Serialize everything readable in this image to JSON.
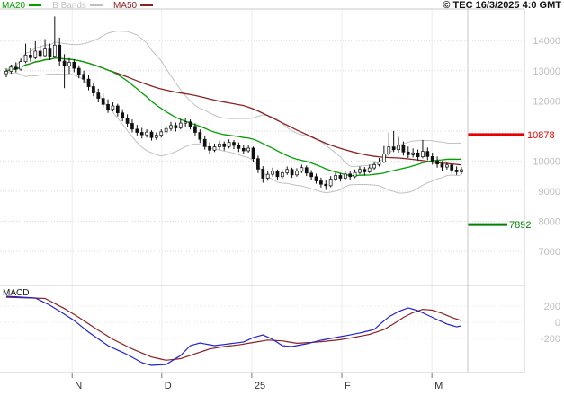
{
  "header": {
    "copyright": "© TEC 16/3/2025 4:0 GMT",
    "legend": [
      {
        "name": "ma20",
        "label": "MA20",
        "color": "#00a000"
      },
      {
        "name": "bbands",
        "label": "B Bands",
        "color": "#c0c0c0"
      },
      {
        "name": "ma50",
        "label": "MA50",
        "color": "#8b2222"
      }
    ]
  },
  "chart_data": {
    "type": "candlestick",
    "title": "",
    "price_axis": {
      "ticks": [
        14000,
        13000,
        12000,
        11000,
        10000,
        9000,
        8000,
        7000
      ],
      "top_value": 15050,
      "bottom_value": 5867
    },
    "x_axis": {
      "labels": [
        {
          "label": "N",
          "index": 13.6
        },
        {
          "label": "D",
          "index": 32.1
        },
        {
          "label": "25",
          "index": 50.7
        },
        {
          "label": "F",
          "index": 69.3
        },
        {
          "label": "M",
          "index": 87.9
        }
      ]
    },
    "levels": [
      {
        "value": 10878,
        "label": "10878",
        "color": "#e80000",
        "side": "outer"
      },
      {
        "value": 7892,
        "label": "7892",
        "color": "#008000",
        "side": "inner"
      }
    ],
    "indicators": {
      "ma20": {
        "period": 20,
        "color": "#00a000"
      },
      "ma50": {
        "period": 50,
        "color": "#8b2222"
      },
      "bbands": {
        "period": 20,
        "mult": 2,
        "color": "#c0c0c0"
      }
    },
    "candles": [
      [
        12900,
        13080,
        12780,
        12980
      ],
      [
        12980,
        13200,
        12900,
        13120
      ],
      [
        13120,
        13280,
        12950,
        13050
      ],
      [
        13050,
        13400,
        13000,
        13300
      ],
      [
        13300,
        13900,
        13250,
        13520
      ],
      [
        13520,
        13750,
        13300,
        13430
      ],
      [
        13430,
        13980,
        13380,
        13650
      ],
      [
        13650,
        13850,
        13400,
        13500
      ],
      [
        13500,
        14050,
        13450,
        13720
      ],
      [
        13720,
        13900,
        13350,
        13480
      ],
      [
        13480,
        14800,
        13420,
        13850
      ],
      [
        13850,
        14100,
        13150,
        13320
      ],
      [
        13320,
        13550,
        12420,
        13150
      ],
      [
        13150,
        13420,
        12900,
        13280
      ],
      [
        13280,
        13380,
        12950,
        13080
      ],
      [
        13080,
        13180,
        12750,
        12880
      ],
      [
        12880,
        13000,
        12600,
        12720
      ],
      [
        12720,
        12850,
        12350,
        12470
      ],
      [
        12470,
        12600,
        12150,
        12260
      ],
      [
        12260,
        12400,
        11950,
        12080
      ],
      [
        12080,
        12250,
        11780,
        11880
      ],
      [
        11880,
        12050,
        11600,
        11720
      ],
      [
        11720,
        11950,
        11650,
        11830
      ],
      [
        11830,
        11900,
        11480,
        11600
      ],
      [
        11600,
        11720,
        11320,
        11430
      ],
      [
        11430,
        11550,
        11120,
        11250
      ],
      [
        11250,
        11380,
        10950,
        11060
      ],
      [
        11060,
        11200,
        10850,
        10950
      ],
      [
        10950,
        11100,
        10750,
        10870
      ],
      [
        10870,
        11050,
        10780,
        10960
      ],
      [
        10960,
        11020,
        10680,
        10780
      ],
      [
        10780,
        10950,
        10700,
        10860
      ],
      [
        10860,
        11050,
        10780,
        10970
      ],
      [
        10970,
        11180,
        10900,
        11080
      ],
      [
        11080,
        11300,
        11000,
        11180
      ],
      [
        11180,
        11280,
        10980,
        11100
      ],
      [
        11100,
        11380,
        11050,
        11260
      ],
      [
        11260,
        11420,
        11120,
        11300
      ],
      [
        11300,
        11380,
        11050,
        11150
      ],
      [
        11150,
        11250,
        10850,
        10950
      ],
      [
        10950,
        11050,
        10600,
        10720
      ],
      [
        10720,
        10850,
        10380,
        10480
      ],
      [
        10480,
        10620,
        10250,
        10360
      ],
      [
        10360,
        10580,
        10300,
        10470
      ],
      [
        10470,
        10680,
        10380,
        10570
      ],
      [
        10570,
        10650,
        10350,
        10480
      ],
      [
        10480,
        10720,
        10420,
        10620
      ],
      [
        10620,
        10700,
        10400,
        10520
      ],
      [
        10520,
        10620,
        10300,
        10420
      ],
      [
        10420,
        10550,
        10250,
        10340
      ],
      [
        10340,
        10520,
        10280,
        10430
      ],
      [
        10430,
        10480,
        9950,
        10080
      ],
      [
        10080,
        10180,
        9600,
        9730
      ],
      [
        9730,
        9830,
        9280,
        9430
      ],
      [
        9430,
        9680,
        9350,
        9560
      ],
      [
        9560,
        9780,
        9480,
        9660
      ],
      [
        9660,
        9720,
        9380,
        9480
      ],
      [
        9480,
        9700,
        9420,
        9610
      ],
      [
        9610,
        9820,
        9540,
        9720
      ],
      [
        9720,
        9780,
        9440,
        9540
      ],
      [
        9540,
        9760,
        9480,
        9660
      ],
      [
        9660,
        9880,
        9600,
        9780
      ],
      [
        9780,
        9850,
        9500,
        9600
      ],
      [
        9600,
        9700,
        9380,
        9480
      ],
      [
        9480,
        9580,
        9250,
        9340
      ],
      [
        9340,
        9450,
        9120,
        9230
      ],
      [
        9230,
        9380,
        9040,
        9180
      ],
      [
        9180,
        9500,
        9130,
        9400
      ],
      [
        9400,
        9620,
        9330,
        9520
      ],
      [
        9520,
        9600,
        9320,
        9430
      ],
      [
        9430,
        9680,
        9380,
        9570
      ],
      [
        9570,
        9650,
        9380,
        9480
      ],
      [
        9480,
        9720,
        9430,
        9620
      ],
      [
        9620,
        9820,
        9560,
        9720
      ],
      [
        9720,
        9800,
        9520,
        9640
      ],
      [
        9640,
        9880,
        9600,
        9770
      ],
      [
        9770,
        9990,
        9710,
        9880
      ],
      [
        9880,
        10100,
        9820,
        9970
      ],
      [
        9970,
        10500,
        9930,
        10230
      ],
      [
        10230,
        10950,
        10180,
        10470
      ],
      [
        10470,
        11000,
        10300,
        10380
      ],
      [
        10380,
        10800,
        10280,
        10520
      ],
      [
        10520,
        10650,
        10180,
        10300
      ],
      [
        10300,
        10480,
        10100,
        10210
      ],
      [
        10210,
        10420,
        10120,
        10270
      ],
      [
        10270,
        10380,
        10020,
        10140
      ],
      [
        10140,
        10700,
        10090,
        10320
      ],
      [
        10320,
        10450,
        10030,
        10150
      ],
      [
        10150,
        10280,
        9880,
        10000
      ],
      [
        10000,
        10150,
        9780,
        9900
      ],
      [
        9900,
        10000,
        9680,
        9800
      ],
      [
        9800,
        9980,
        9720,
        9870
      ],
      [
        9870,
        9920,
        9600,
        9700
      ],
      [
        9700,
        9820,
        9540,
        9640
      ],
      [
        9640,
        9800,
        9560,
        9710
      ]
    ],
    "macd": {
      "label": "MACD",
      "axis_ticks": [
        200,
        0,
        -200
      ],
      "line": {
        "color": "#2222cc",
        "values": [
          322,
          318,
          315,
          311,
          307,
          304,
          300,
          270,
          241,
          211,
          174,
          137,
          100,
          61,
          22,
          -26,
          -74,
          -122,
          -164,
          -205,
          -247,
          -289,
          -317,
          -345,
          -372,
          -400,
          -433,
          -467,
          -500,
          -517,
          -533,
          -529,
          -526,
          -522,
          -485,
          -448,
          -411,
          -350,
          -289,
          -273,
          -256,
          -267,
          -278,
          -289,
          -282,
          -274,
          -267,
          -259,
          -252,
          -244,
          -217,
          -189,
          -173,
          -156,
          -184,
          -211,
          -250,
          -289,
          -295,
          -300,
          -289,
          -278,
          -267,
          -252,
          -237,
          -222,
          -211,
          -200,
          -189,
          -178,
          -167,
          -156,
          -144,
          -133,
          -118,
          -104,
          -89,
          -33,
          17,
          67,
          100,
          133,
          156,
          178,
          161,
          144,
          117,
          89,
          61,
          33,
          6,
          -22,
          -39,
          -56,
          -44
        ]
      },
      "signal": {
        "color": "#8b2222",
        "values": [
          310,
          308,
          306,
          304,
          302,
          301,
          299,
          297,
          295,
          264,
          233,
          201,
          170,
          133,
          97,
          60,
          20,
          -20,
          -60,
          -98,
          -135,
          -173,
          -210,
          -240,
          -270,
          -300,
          -330,
          -355,
          -380,
          -405,
          -430,
          -443,
          -457,
          -470,
          -463,
          -457,
          -450,
          -430,
          -410,
          -390,
          -370,
          -350,
          -330,
          -320,
          -310,
          -300,
          -293,
          -287,
          -280,
          -270,
          -260,
          -250,
          -240,
          -230,
          -220,
          -223,
          -227,
          -230,
          -240,
          -250,
          -260,
          -257,
          -253,
          -250,
          -245,
          -240,
          -235,
          -228,
          -222,
          -215,
          -205,
          -195,
          -185,
          -173,
          -162,
          -150,
          -130,
          -110,
          -90,
          -55,
          -20,
          20,
          60,
          90,
          120,
          140,
          160,
          155,
          150,
          130,
          110,
          85,
          60,
          40,
          20
        ]
      }
    }
  }
}
